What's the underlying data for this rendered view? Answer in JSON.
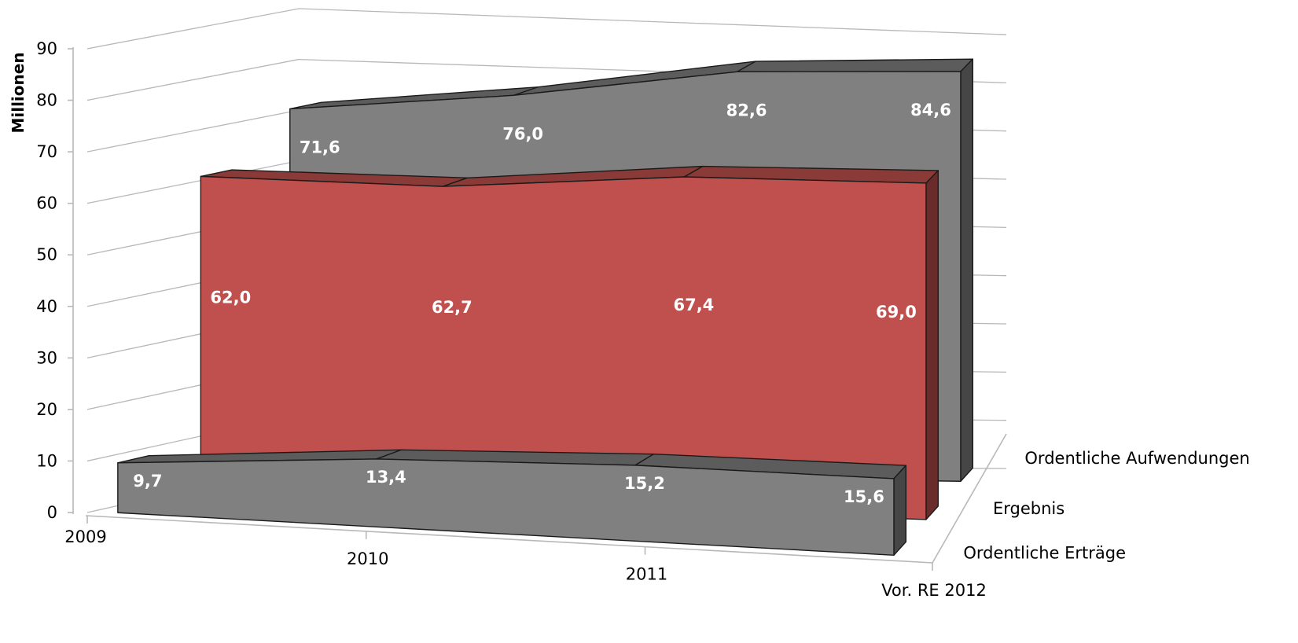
{
  "chart_data": {
    "type": "area",
    "variant": "3d-area",
    "title": "",
    "xlabel": "",
    "ylabel": "Millionen",
    "ylim": [
      0,
      90
    ],
    "yticks": [
      0,
      10,
      20,
      30,
      40,
      50,
      60,
      70,
      80,
      90
    ],
    "categories": [
      "2009",
      "2010",
      "2011",
      "Vor. RE 2012"
    ],
    "grid": true,
    "legend": "none",
    "series": [
      {
        "name": "Ordentliche Aufwendungen",
        "color": "#808080",
        "values": [
          71.6,
          76.0,
          82.6,
          84.6
        ],
        "labels": [
          "71,6",
          "76,0",
          "82,6",
          "84,6"
        ]
      },
      {
        "name": "Ergebnis",
        "color": "#c0504d",
        "values": [
          62.0,
          62.7,
          67.4,
          69.0
        ],
        "labels": [
          "62,0",
          "62,7",
          "67,4",
          "69,0"
        ]
      },
      {
        "name": "Ordentliche Erträge",
        "color": "#808080",
        "values": [
          9.7,
          13.4,
          15.2,
          15.6
        ],
        "labels": [
          "9,7",
          "13,4",
          "15,2",
          "15,6"
        ]
      }
    ]
  }
}
